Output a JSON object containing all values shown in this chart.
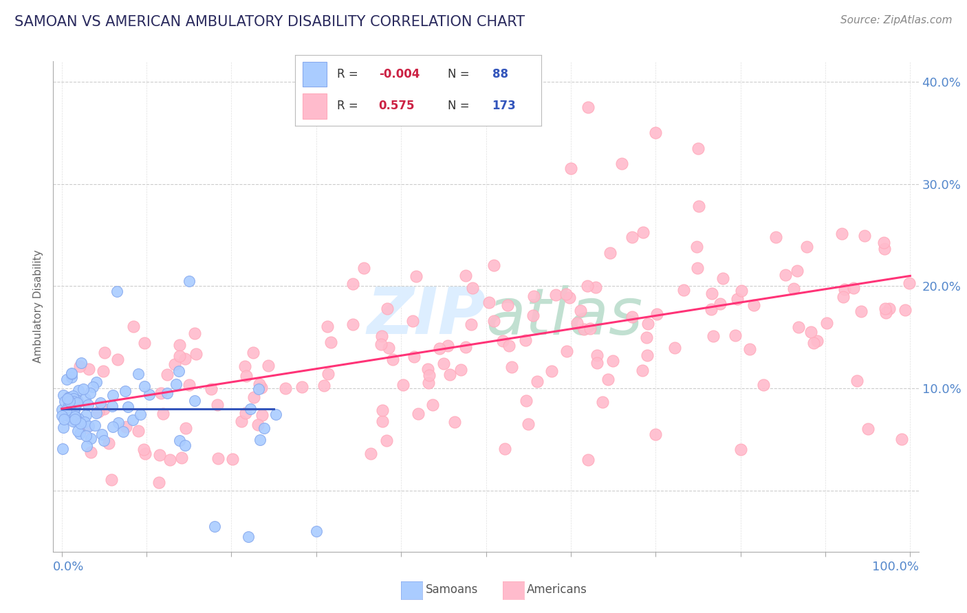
{
  "title": "SAMOAN VS AMERICAN AMBULATORY DISABILITY CORRELATION CHART",
  "source": "Source: ZipAtlas.com",
  "ylabel": "Ambulatory Disability",
  "title_color": "#2b2b5e",
  "source_color": "#888888",
  "axis_label_color": "#5588cc",
  "ylabel_color": "#666666",
  "background_color": "#ffffff",
  "grid_color": "#cccccc",
  "samoan_color": "#aaccff",
  "samoan_edge_color": "#88aaee",
  "american_color": "#ffbbcc",
  "american_edge_color": "#ffaabb",
  "samoan_line_color": "#3355bb",
  "american_line_color": "#ff3377",
  "legend_r_color": "#cc2244",
  "legend_n_color": "#3355bb",
  "legend_label_color": "#333333",
  "watermark_color": "#ddeeff",
  "samoan_R": -0.004,
  "samoan_N": 88,
  "american_R": 0.575,
  "american_N": 173,
  "xmin": 0.0,
  "xmax": 100.0,
  "ymin": -6.0,
  "ymax": 42.0,
  "yticks": [
    0,
    10,
    20,
    30,
    40
  ],
  "ytick_labels": [
    "",
    "10.0%",
    "20.0%",
    "30.0%",
    "40.0%"
  ],
  "samoan_line_x": [
    0,
    25
  ],
  "samoan_line_y": [
    8.0,
    8.0
  ],
  "american_line_x": [
    0,
    100
  ],
  "american_line_y": [
    8.0,
    21.0
  ]
}
